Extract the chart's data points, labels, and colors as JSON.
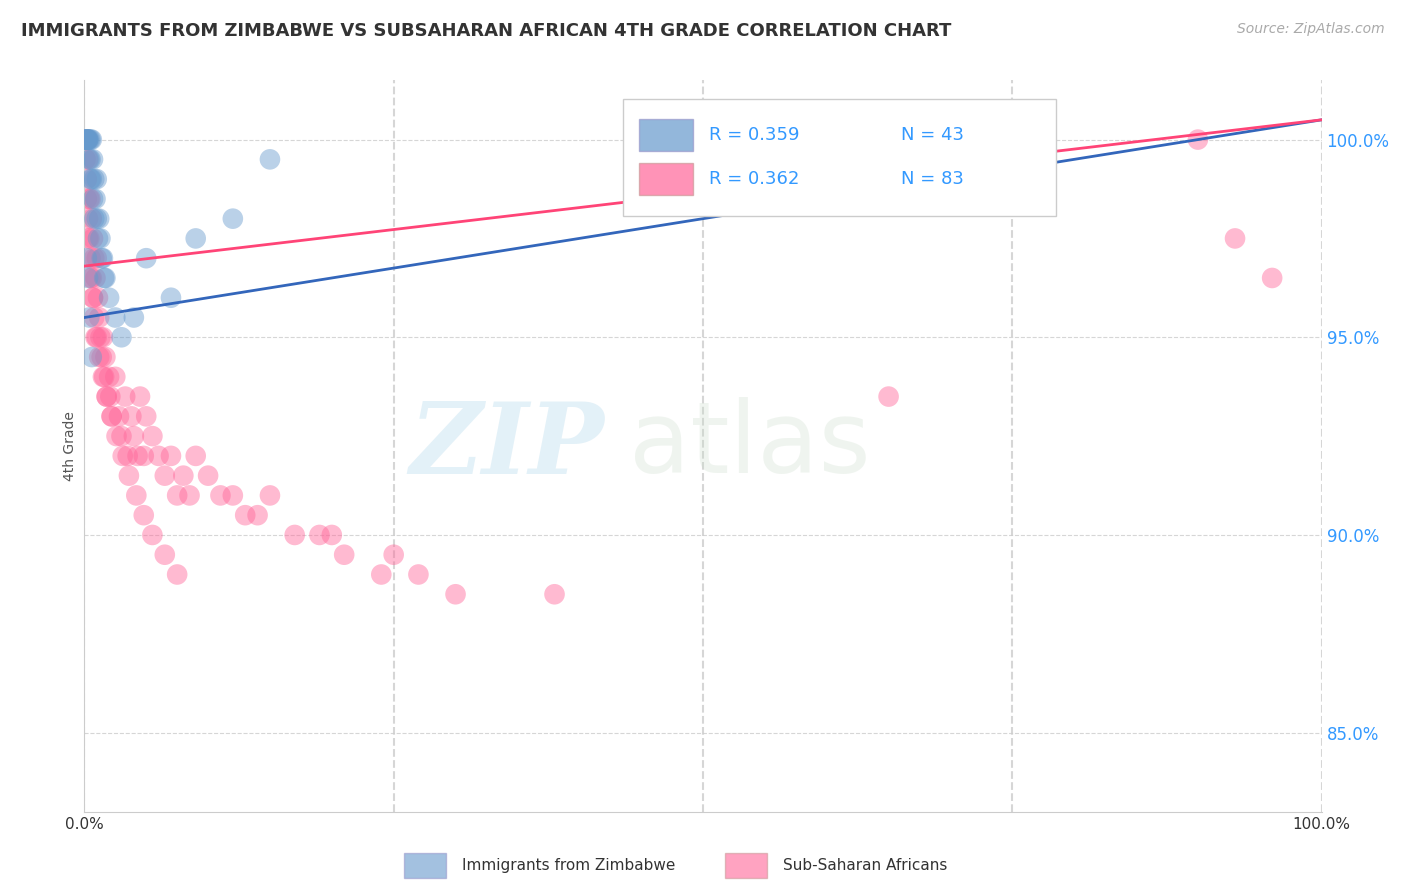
{
  "title": "IMMIGRANTS FROM ZIMBABWE VS SUBSAHARAN AFRICAN 4TH GRADE CORRELATION CHART",
  "source": "Source: ZipAtlas.com",
  "ylabel": "4th Grade",
  "yticks": [
    85.0,
    90.0,
    95.0,
    100.0
  ],
  "ytick_labels": [
    "85.0%",
    "90.0%",
    "95.0%",
    "100.0%"
  ],
  "xlim": [
    0.0,
    1.0
  ],
  "ylim": [
    83.0,
    101.5
  ],
  "legend_r1": "R = 0.359",
  "legend_n1": "N = 43",
  "legend_r2": "R = 0.362",
  "legend_n2": "N = 83",
  "legend_label1": "Immigrants from Zimbabwe",
  "legend_label2": "Sub-Saharan Africans",
  "blue_color": "#6699CC",
  "pink_color": "#FF6699",
  "blue_line_color": "#3366BB",
  "pink_line_color": "#FF4477",
  "watermark_zip": "ZIP",
  "watermark_atlas": "atlas",
  "zimbabwe_x": [
    0.001,
    0.001,
    0.001,
    0.002,
    0.002,
    0.002,
    0.003,
    0.003,
    0.003,
    0.004,
    0.004,
    0.005,
    0.005,
    0.005,
    0.006,
    0.006,
    0.007,
    0.007,
    0.008,
    0.008,
    0.009,
    0.01,
    0.01,
    0.011,
    0.012,
    0.013,
    0.014,
    0.015,
    0.016,
    0.017,
    0.02,
    0.025,
    0.03,
    0.04,
    0.05,
    0.07,
    0.09,
    0.12,
    0.15,
    0.002,
    0.003,
    0.004,
    0.006
  ],
  "zimbabwe_y": [
    100.0,
    100.0,
    100.0,
    100.0,
    100.0,
    100.0,
    100.0,
    100.0,
    100.0,
    100.0,
    99.5,
    100.0,
    99.5,
    99.0,
    100.0,
    99.0,
    99.5,
    98.5,
    99.0,
    98.0,
    98.5,
    99.0,
    98.0,
    97.5,
    98.0,
    97.5,
    97.0,
    97.0,
    96.5,
    96.5,
    96.0,
    95.5,
    95.0,
    95.5,
    97.0,
    96.0,
    97.5,
    98.0,
    99.5,
    97.0,
    96.5,
    95.5,
    94.5
  ],
  "subsaharan_x": [
    0.001,
    0.002,
    0.002,
    0.003,
    0.003,
    0.004,
    0.004,
    0.005,
    0.005,
    0.006,
    0.006,
    0.007,
    0.007,
    0.008,
    0.008,
    0.009,
    0.01,
    0.01,
    0.011,
    0.012,
    0.013,
    0.014,
    0.015,
    0.016,
    0.017,
    0.018,
    0.02,
    0.021,
    0.022,
    0.025,
    0.028,
    0.03,
    0.033,
    0.035,
    0.038,
    0.04,
    0.043,
    0.045,
    0.048,
    0.05,
    0.055,
    0.06,
    0.065,
    0.07,
    0.075,
    0.08,
    0.085,
    0.09,
    0.1,
    0.11,
    0.12,
    0.13,
    0.14,
    0.15,
    0.17,
    0.19,
    0.21,
    0.24,
    0.27,
    0.3,
    0.003,
    0.005,
    0.007,
    0.009,
    0.012,
    0.015,
    0.018,
    0.022,
    0.026,
    0.031,
    0.036,
    0.042,
    0.048,
    0.055,
    0.065,
    0.075,
    0.2,
    0.25,
    0.38,
    0.9,
    0.93,
    0.96,
    0.65
  ],
  "subsaharan_y": [
    99.5,
    99.0,
    98.5,
    99.5,
    98.0,
    98.5,
    97.5,
    98.5,
    97.0,
    98.0,
    96.5,
    97.5,
    96.0,
    97.0,
    95.5,
    96.5,
    97.0,
    95.0,
    96.0,
    95.5,
    95.0,
    94.5,
    95.0,
    94.0,
    94.5,
    93.5,
    94.0,
    93.5,
    93.0,
    94.0,
    93.0,
    92.5,
    93.5,
    92.0,
    93.0,
    92.5,
    92.0,
    93.5,
    92.0,
    93.0,
    92.5,
    92.0,
    91.5,
    92.0,
    91.0,
    91.5,
    91.0,
    92.0,
    91.5,
    91.0,
    91.0,
    90.5,
    90.5,
    91.0,
    90.0,
    90.0,
    89.5,
    89.0,
    89.0,
    88.5,
    97.5,
    96.5,
    96.0,
    95.0,
    94.5,
    94.0,
    93.5,
    93.0,
    92.5,
    92.0,
    91.5,
    91.0,
    90.5,
    90.0,
    89.5,
    89.0,
    90.0,
    89.5,
    88.5,
    100.0,
    97.5,
    96.5,
    93.5
  ]
}
